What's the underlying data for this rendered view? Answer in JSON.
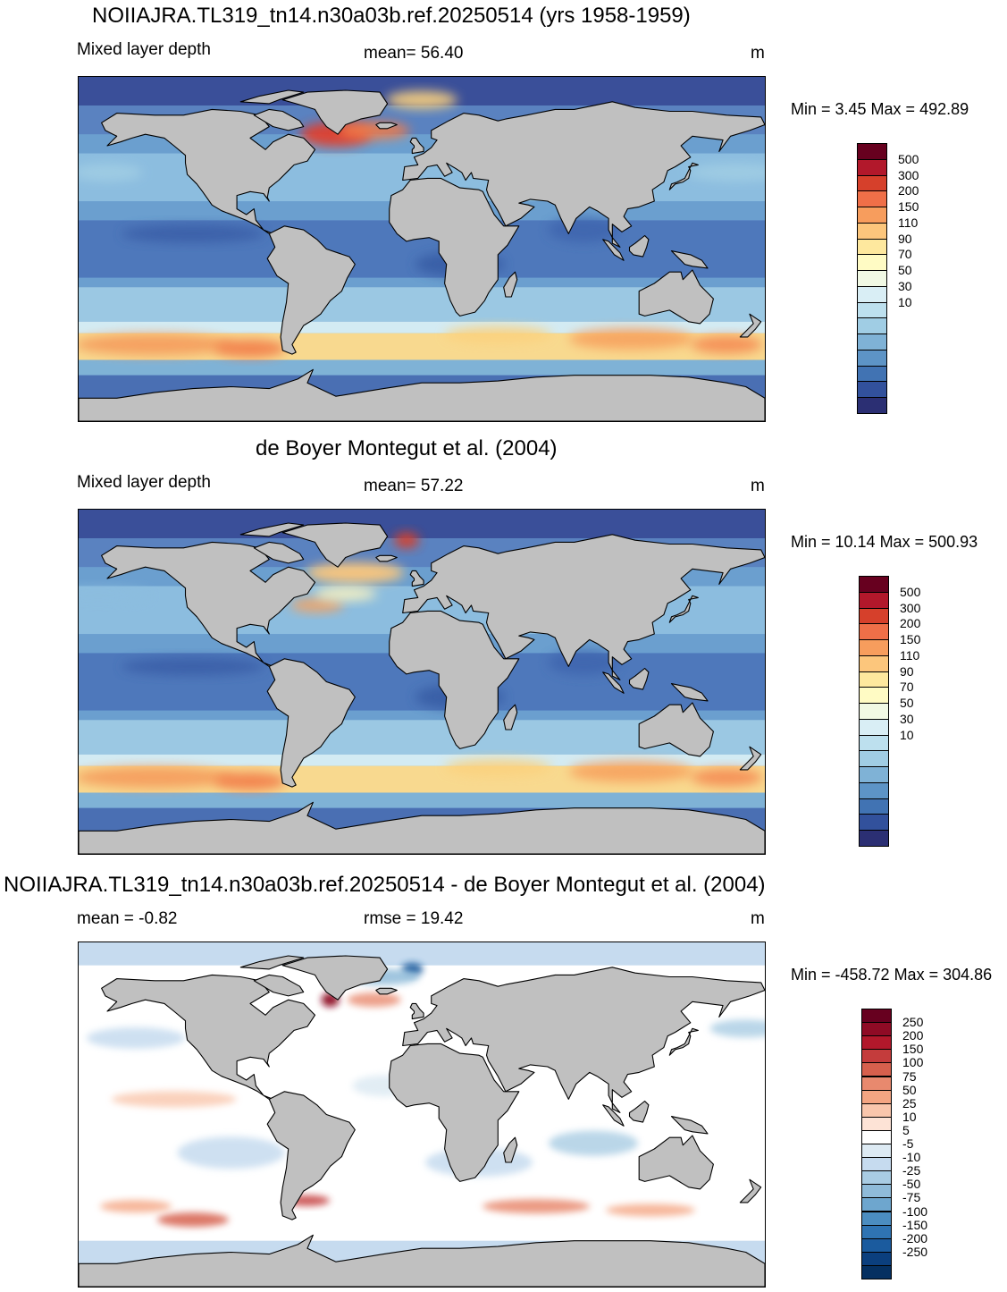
{
  "panels": [
    {
      "title": "NOIIAJRA.TL319_tn14.n30a03b.ref.20250514 (yrs 1958-1959)",
      "left_label": "Mixed layer depth",
      "center_label": "mean=  56.40",
      "units": "m",
      "minmax": "Min =   3.45 Max = 492.89",
      "colorbar": {
        "colors": [
          "#67001f",
          "#b2182b",
          "#d6402b",
          "#ef6f48",
          "#f79d5d",
          "#fcc67c",
          "#fee89e",
          "#fffbc4",
          "#f1f9e4",
          "#d9eef5",
          "#bde0ee",
          "#a0cde4",
          "#7fb2d6",
          "#5d94c6",
          "#4173b3",
          "#32519c",
          "#2b2f73"
        ],
        "labels": [
          "500",
          "300",
          "200",
          "150",
          "110",
          "90",
          "70",
          "50",
          "30",
          "10"
        ]
      }
    },
    {
      "title": "de Boyer Montegut et al. (2004)",
      "left_label": "Mixed layer depth",
      "center_label": "mean=  57.22",
      "units": "m",
      "minmax": "Min =  10.14 Max = 500.93",
      "colorbar": {
        "colors": [
          "#67001f",
          "#b2182b",
          "#d6402b",
          "#ef6f48",
          "#f79d5d",
          "#fcc67c",
          "#fee89e",
          "#fffbc4",
          "#f1f9e4",
          "#d9eef5",
          "#bde0ee",
          "#a0cde4",
          "#7fb2d6",
          "#5d94c6",
          "#4173b3",
          "#32519c",
          "#2b2f73"
        ],
        "labels": [
          "500",
          "300",
          "200",
          "150",
          "110",
          "90",
          "70",
          "50",
          "30",
          "10"
        ]
      }
    },
    {
      "title": "NOIIAJRA.TL319_tn14.n30a03b.ref.20250514 - de Boyer Montegut et al. (2004)",
      "left_label": "mean =  -0.82",
      "center_label": "rmse =  19.42",
      "units": "m",
      "minmax": "Min = -458.72 Max = 304.86",
      "colorbar": {
        "colors": [
          "#67001f",
          "#8f0b25",
          "#b2182b",
          "#c43c3c",
          "#d6604d",
          "#e8896e",
          "#f4a582",
          "#f9c6ac",
          "#fde3d6",
          "#ffffff",
          "#ddeaf3",
          "#c6dbef",
          "#a9cce3",
          "#8fbbd9",
          "#6ea6ce",
          "#4b8dc0",
          "#2f74b3",
          "#1b5b9e",
          "#0b3f7e",
          "#053061"
        ],
        "labels": [
          "250",
          "200",
          "150",
          "100",
          "75",
          "50",
          "25",
          "10",
          "5",
          "-5",
          "-10",
          "-25",
          "-50",
          "-75",
          "-100",
          "-150",
          "-200",
          "-250"
        ]
      }
    }
  ]
}
